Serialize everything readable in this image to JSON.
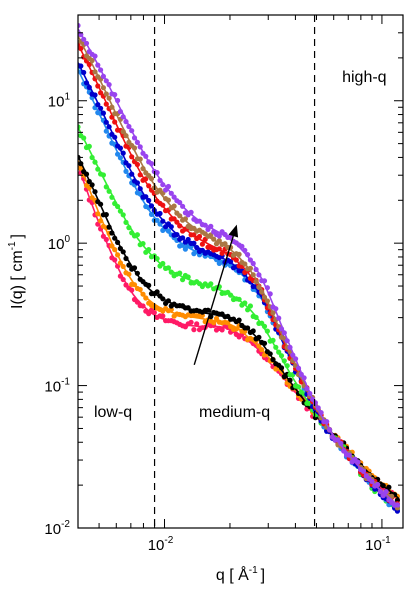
{
  "chart_data": {
    "type": "scatter",
    "title": "",
    "xlabel": "q [ Å",
    "xlabel_exp": "-1",
    "xlabel_close": "]",
    "ylabel": "I(q) [ cm",
    "ylabel_exp": "-1",
    "ylabel_close": "]",
    "x_scale": "log",
    "y_scale": "log",
    "xlim": [
      0.004,
      0.125
    ],
    "ylim": [
      0.01,
      40
    ],
    "x_ticks": [
      {
        "value": 0.01,
        "base": "10",
        "exp": "-2"
      },
      {
        "value": 0.1,
        "base": "10",
        "exp": "-1"
      }
    ],
    "y_ticks": [
      {
        "value": 0.01,
        "base": "10",
        "exp": "-2"
      },
      {
        "value": 0.1,
        "base": "10",
        "exp": "-1"
      },
      {
        "value": 1,
        "base": "10",
        "exp": "0"
      },
      {
        "value": 10,
        "base": "10",
        "exp": "1"
      }
    ],
    "vlines": [
      0.009,
      0.049
    ],
    "region_labels": [
      {
        "text": "low-q",
        "x": 0.0058,
        "y": 0.06
      },
      {
        "text": "medium-q",
        "x": 0.021,
        "y": 0.06
      },
      {
        "text": "high-q",
        "x": 0.083,
        "y": 13.5
      }
    ],
    "arrow": {
      "from": [
        0.0137,
        0.14
      ],
      "to": [
        0.0215,
        1.35
      ]
    },
    "grid": false,
    "legend": "none",
    "series": [
      {
        "color": "#ff1a66",
        "x": [
          0.004,
          0.005,
          0.006,
          0.007,
          0.008,
          0.009,
          0.01,
          0.012,
          0.014,
          0.016,
          0.018,
          0.02,
          0.022,
          0.025,
          0.028,
          0.031,
          0.035,
          0.04,
          0.045,
          0.05,
          0.055,
          0.06,
          0.07,
          0.08,
          0.09,
          0.1,
          0.11,
          0.12
        ],
        "y": [
          3.5,
          1.35,
          0.7,
          0.45,
          0.36,
          0.31,
          0.29,
          0.27,
          0.26,
          0.26,
          0.26,
          0.25,
          0.23,
          0.2,
          0.17,
          0.14,
          0.115,
          0.09,
          0.072,
          0.06,
          0.051,
          0.044,
          0.034,
          0.027,
          0.022,
          0.019,
          0.017,
          0.016
        ]
      },
      {
        "color": "#ff8c00",
        "x": [
          0.004,
          0.005,
          0.006,
          0.007,
          0.008,
          0.009,
          0.01,
          0.012,
          0.014,
          0.016,
          0.018,
          0.02,
          0.022,
          0.025,
          0.028,
          0.031,
          0.035,
          0.04,
          0.045,
          0.05,
          0.055,
          0.06,
          0.07,
          0.08,
          0.09,
          0.1,
          0.11,
          0.12
        ],
        "y": [
          3.8,
          1.6,
          0.85,
          0.55,
          0.43,
          0.37,
          0.34,
          0.31,
          0.3,
          0.29,
          0.28,
          0.27,
          0.25,
          0.21,
          0.18,
          0.15,
          0.12,
          0.093,
          0.074,
          0.061,
          0.052,
          0.045,
          0.035,
          0.028,
          0.023,
          0.02,
          0.018,
          0.016
        ]
      },
      {
        "color": "#000000",
        "x": [
          0.004,
          0.005,
          0.006,
          0.007,
          0.008,
          0.009,
          0.01,
          0.012,
          0.014,
          0.016,
          0.018,
          0.02,
          0.022,
          0.025,
          0.028,
          0.031,
          0.035,
          0.04,
          0.045,
          0.05,
          0.055,
          0.06,
          0.07,
          0.08,
          0.09,
          0.1,
          0.11,
          0.12
        ],
        "y": [
          4.1,
          1.95,
          1.05,
          0.7,
          0.52,
          0.44,
          0.4,
          0.35,
          0.33,
          0.32,
          0.31,
          0.3,
          0.28,
          0.24,
          0.2,
          0.16,
          0.125,
          0.095,
          0.075,
          0.061,
          0.052,
          0.045,
          0.035,
          0.028,
          0.023,
          0.02,
          0.018,
          0.016
        ]
      },
      {
        "color": "#33ee33",
        "x": [
          0.004,
          0.005,
          0.006,
          0.007,
          0.008,
          0.009,
          0.01,
          0.012,
          0.014,
          0.016,
          0.018,
          0.02,
          0.022,
          0.025,
          0.028,
          0.031,
          0.035,
          0.04,
          0.045,
          0.05,
          0.055,
          0.06,
          0.07,
          0.08,
          0.09,
          0.1,
          0.11,
          0.12
        ],
        "y": [
          6.5,
          3.3,
          1.9,
          1.25,
          0.95,
          0.78,
          0.68,
          0.58,
          0.53,
          0.5,
          0.47,
          0.44,
          0.4,
          0.34,
          0.27,
          0.21,
          0.15,
          0.105,
          0.08,
          0.063,
          0.052,
          0.044,
          0.033,
          0.025,
          0.02,
          0.017,
          0.015,
          0.013
        ]
      },
      {
        "color": "#2288ee",
        "x": [
          0.004,
          0.005,
          0.006,
          0.007,
          0.008,
          0.009,
          0.01,
          0.012,
          0.014,
          0.016,
          0.018,
          0.02,
          0.022,
          0.025,
          0.028,
          0.031,
          0.035,
          0.04,
          0.045,
          0.05,
          0.055,
          0.06,
          0.07,
          0.08,
          0.09,
          0.1,
          0.11,
          0.12
        ],
        "y": [
          16.5,
          8.2,
          4.5,
          2.8,
          1.95,
          1.5,
          1.25,
          0.98,
          0.87,
          0.8,
          0.75,
          0.7,
          0.63,
          0.52,
          0.41,
          0.3,
          0.2,
          0.13,
          0.09,
          0.066,
          0.052,
          0.043,
          0.032,
          0.025,
          0.02,
          0.017,
          0.015,
          0.013
        ]
      },
      {
        "color": "#0000cc",
        "x": [
          0.004,
          0.005,
          0.006,
          0.007,
          0.008,
          0.009,
          0.01,
          0.012,
          0.014,
          0.016,
          0.018,
          0.02,
          0.022,
          0.025,
          0.028,
          0.031,
          0.035,
          0.04,
          0.045,
          0.05,
          0.055,
          0.06,
          0.07,
          0.08,
          0.09,
          0.1,
          0.11,
          0.12
        ],
        "y": [
          18.5,
          9.3,
          5.2,
          3.2,
          2.2,
          1.7,
          1.4,
          1.07,
          0.94,
          0.86,
          0.8,
          0.74,
          0.66,
          0.54,
          0.42,
          0.31,
          0.2,
          0.13,
          0.09,
          0.066,
          0.052,
          0.043,
          0.032,
          0.025,
          0.02,
          0.017,
          0.015,
          0.013
        ]
      },
      {
        "color": "#ee1111",
        "x": [
          0.004,
          0.005,
          0.006,
          0.007,
          0.008,
          0.009,
          0.01,
          0.012,
          0.014,
          0.016,
          0.018,
          0.02,
          0.022,
          0.025,
          0.028,
          0.031,
          0.035,
          0.04,
          0.045,
          0.05,
          0.055,
          0.06,
          0.07,
          0.08,
          0.09,
          0.1,
          0.11,
          0.12
        ],
        "y": [
          25,
          12.5,
          6.8,
          4.2,
          2.85,
          2.15,
          1.75,
          1.3,
          1.1,
          0.98,
          0.9,
          0.82,
          0.73,
          0.59,
          0.45,
          0.32,
          0.21,
          0.135,
          0.093,
          0.068,
          0.054,
          0.044,
          0.033,
          0.026,
          0.021,
          0.018,
          0.016,
          0.014
        ]
      },
      {
        "color": "#aa7744",
        "x": [
          0.004,
          0.005,
          0.006,
          0.007,
          0.008,
          0.009,
          0.01,
          0.012,
          0.014,
          0.016,
          0.018,
          0.02,
          0.022,
          0.025,
          0.028,
          0.031,
          0.035,
          0.04,
          0.045,
          0.05,
          0.055,
          0.06,
          0.07,
          0.08,
          0.09,
          0.1,
          0.11,
          0.12
        ],
        "y": [
          28.5,
          14.5,
          8.0,
          5.0,
          3.4,
          2.55,
          2.05,
          1.5,
          1.25,
          1.1,
          1.0,
          0.91,
          0.8,
          0.64,
          0.48,
          0.34,
          0.22,
          0.14,
          0.095,
          0.069,
          0.054,
          0.044,
          0.033,
          0.026,
          0.021,
          0.018,
          0.016,
          0.014
        ]
      },
      {
        "color": "#9944ee",
        "x": [
          0.004,
          0.005,
          0.006,
          0.007,
          0.008,
          0.009,
          0.01,
          0.012,
          0.014,
          0.016,
          0.018,
          0.02,
          0.022,
          0.025,
          0.028,
          0.031,
          0.035,
          0.04,
          0.045,
          0.05,
          0.055,
          0.06,
          0.07,
          0.08,
          0.09,
          0.1,
          0.11,
          0.12
        ],
        "y": [
          32,
          17.5,
          10.0,
          6.3,
          4.3,
          3.2,
          2.55,
          1.82,
          1.48,
          1.3,
          1.18,
          1.07,
          0.95,
          0.76,
          0.57,
          0.4,
          0.25,
          0.155,
          0.1,
          0.071,
          0.055,
          0.044,
          0.033,
          0.026,
          0.021,
          0.018,
          0.016,
          0.014
        ]
      }
    ]
  }
}
